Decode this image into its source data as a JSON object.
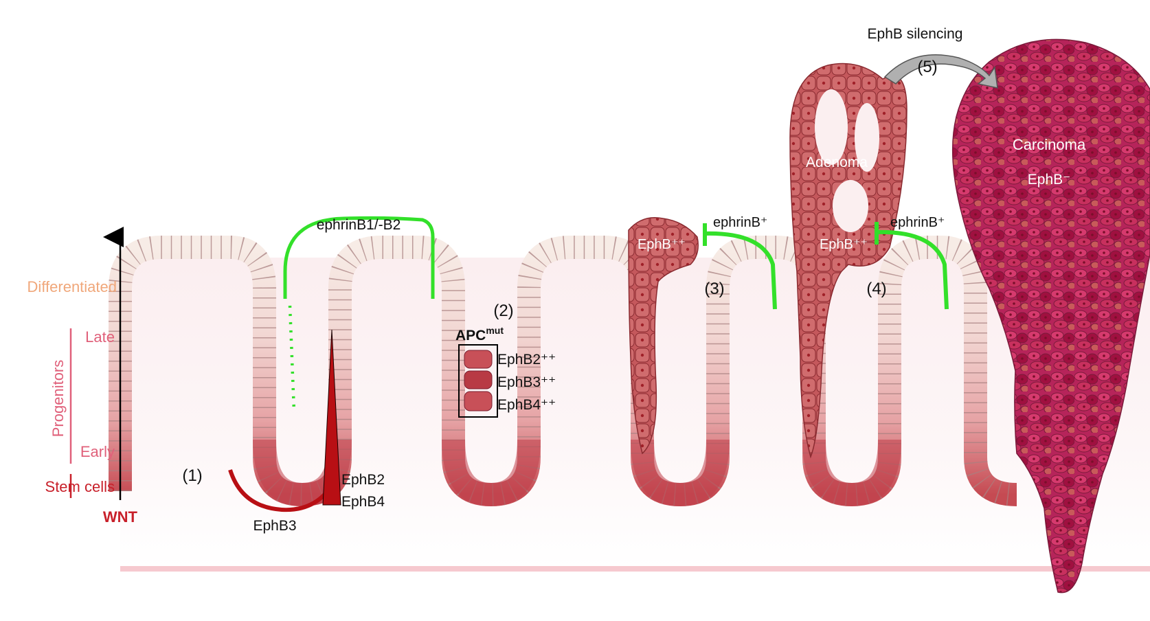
{
  "axis": {
    "differentiated": "Differentiated",
    "progenitors": "Progenitors",
    "late": "Late",
    "early": "Early",
    "stem_cells": "Stem cells",
    "wnt": "WNT"
  },
  "stages": {
    "s1": "(1)",
    "s2": "(2)",
    "s3": "(3)",
    "s4": "(4)",
    "s5": "(5)"
  },
  "normal_crypt": {
    "ephrin": "ephrinB1/-B2",
    "ephb3": "EphB3",
    "ephb2": "EphB2",
    "ephb4": "EphB4"
  },
  "apc": {
    "base": "APC",
    "sup": "mut",
    "ephb2": "EphB2⁺⁺",
    "ephb3": "EphB3⁺⁺",
    "ephb4": "EphB4⁺⁺"
  },
  "stage3": {
    "ephb": "EphB⁺⁺",
    "ephrin": "ephrinB⁺"
  },
  "stage4": {
    "adenoma": "Adenoma",
    "ephb": "EphB⁺⁺",
    "ephrin": "ephrinB⁺"
  },
  "stage5": {
    "silencing": "EphB silencing",
    "carcinoma": "Carcinoma",
    "ephb_neg": "EphB⁻"
  },
  "colors": {
    "axis_orange": "#f0a77a",
    "progenitor_pink": "#e0607a",
    "stem_red": "#c8202a",
    "ephrin_green": "#33e02a",
    "gradient_red": "#b80f14",
    "carcinoma": "#b0204e",
    "adenoma": "#c85a5a"
  }
}
